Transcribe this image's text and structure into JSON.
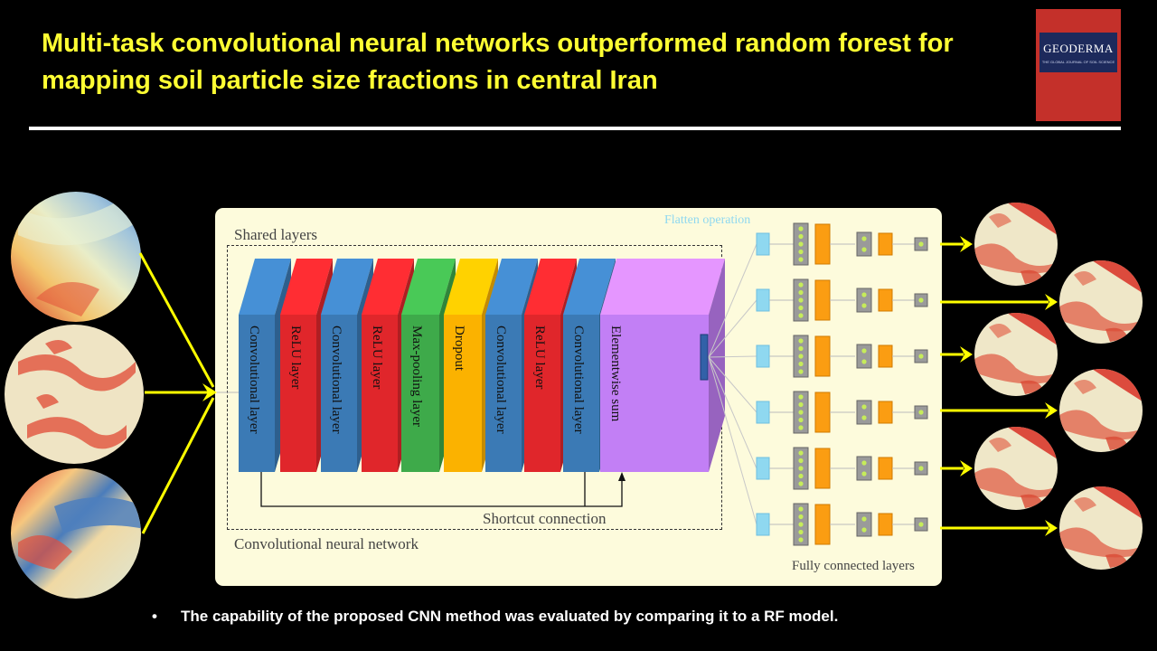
{
  "title": "Multi-task convolutional neural networks outperformed random forest for mapping soil particle size fractions in central Iran",
  "journal": {
    "name": "GEODERMA",
    "subtitle": "THE GLOBAL JOURNAL OF SOIL SCIENCE"
  },
  "diagram": {
    "shared_label": "Shared layers",
    "flatten_label": "Flatten operation",
    "cnn_label": "Convolutional neural network",
    "shortcut_label": "Shortcut connection",
    "fc_label": "Fully connected layers",
    "layers": [
      {
        "label": "Convolutional layer",
        "color": "#3b7ab5"
      },
      {
        "label": "ReLU layer",
        "color": "#e0262b"
      },
      {
        "label": "Convolutional layer",
        "color": "#3b7ab5"
      },
      {
        "label": "ReLU layer",
        "color": "#e0262b"
      },
      {
        "label": "Max-pooling layer",
        "color": "#3eaa4a"
      },
      {
        "label": "Dropout",
        "color": "#fbb200"
      },
      {
        "label": "Convolutional layer",
        "color": "#3b7ab5"
      },
      {
        "label": "ReLU layer",
        "color": "#e0262b"
      },
      {
        "label": "Convolutional layer",
        "color": "#3b7ab5"
      },
      {
        "label": "Elementwise sum",
        "color": "#c27ff5"
      }
    ],
    "branch_count": 6,
    "input_map_count": 3,
    "output_map_count": 6
  },
  "bullet": "The capability of the proposed CNN method was evaluated by comparing it to a RF model.",
  "colors": {
    "title": "#ffff33",
    "arrow": "#ffff00",
    "panel": "#fdfbdc"
  }
}
